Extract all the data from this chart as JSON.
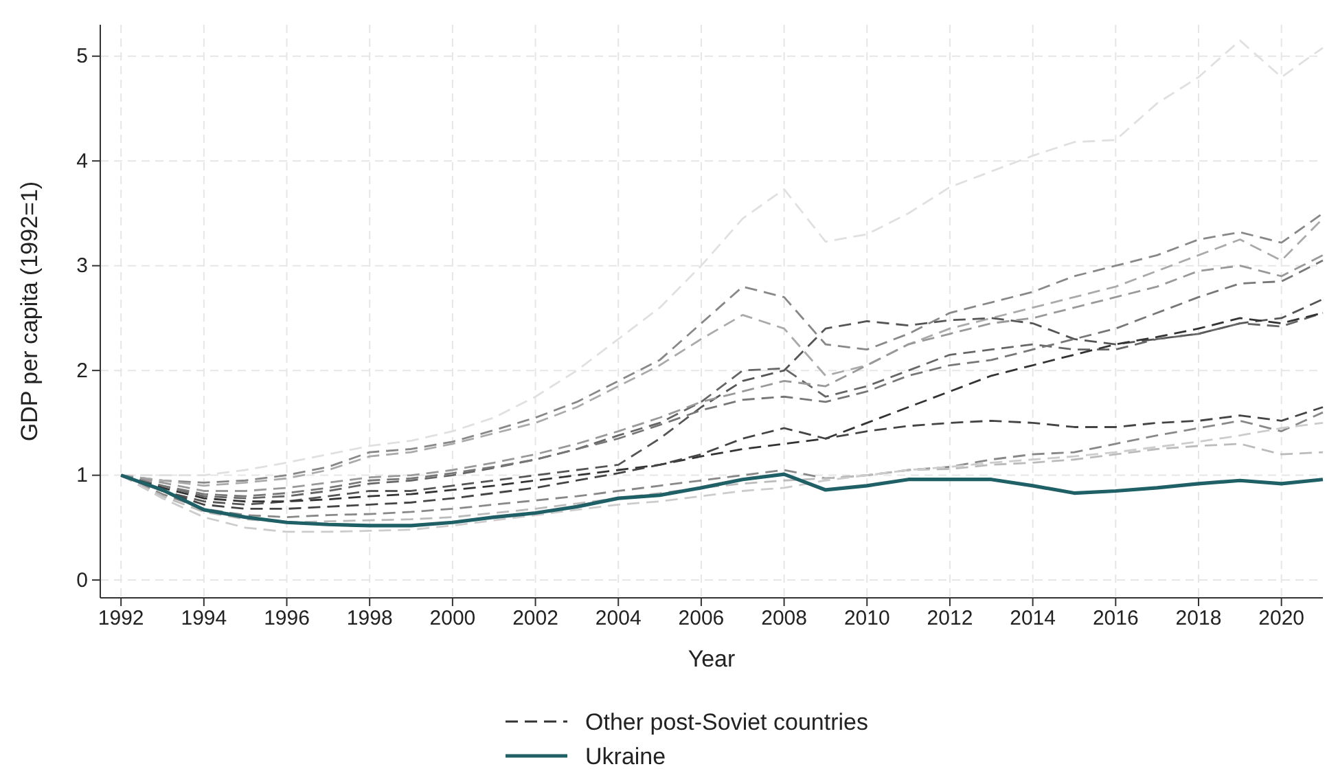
{
  "chart_data": {
    "type": "line",
    "xlabel": "Year",
    "ylabel": "GDP per capita (1992=1)",
    "x": [
      1992,
      1993,
      1994,
      1995,
      1996,
      1997,
      1998,
      1999,
      2000,
      2001,
      2002,
      2003,
      2004,
      2005,
      2006,
      2007,
      2008,
      2009,
      2010,
      2011,
      2012,
      2013,
      2014,
      2015,
      2016,
      2017,
      2018,
      2019,
      2020,
      2021
    ],
    "xlim": [
      1991.5,
      2021
    ],
    "xticks": [
      1992,
      1994,
      1996,
      1998,
      2000,
      2002,
      2004,
      2006,
      2008,
      2010,
      2012,
      2014,
      2016,
      2018,
      2020
    ],
    "ylim": [
      -0.17,
      5.3
    ],
    "yticks": [
      0,
      1,
      2,
      3,
      4,
      5
    ],
    "grid": true,
    "legend": "bottom",
    "marker": "none",
    "series": [
      {
        "color": "#e0e0e0",
        "line_style": "dashed",
        "values": [
          1,
          1,
          1,
          1.05,
          1.12,
          1.2,
          1.28,
          1.33,
          1.42,
          1.55,
          1.75,
          2.0,
          2.3,
          2.6,
          3.0,
          3.45,
          3.73,
          3.23,
          3.3,
          3.5,
          3.75,
          3.9,
          4.05,
          4.18,
          4.2,
          4.55,
          4.8,
          5.15,
          4.8,
          5.08
        ]
      },
      {
        "color": "#888888",
        "line_style": "dashed",
        "values": [
          1,
          0.95,
          0.93,
          0.95,
          1.0,
          1.08,
          1.22,
          1.25,
          1.32,
          1.43,
          1.55,
          1.7,
          1.9,
          2.1,
          2.45,
          2.8,
          2.7,
          2.25,
          2.2,
          2.35,
          2.55,
          2.65,
          2.75,
          2.9,
          3.0,
          3.1,
          3.25,
          3.32,
          3.22,
          3.5
        ]
      },
      {
        "color": "#aaaaaa",
        "line_style": "dashed",
        "values": [
          1,
          0.95,
          0.9,
          0.93,
          0.97,
          1.05,
          1.18,
          1.22,
          1.3,
          1.4,
          1.5,
          1.65,
          1.85,
          2.05,
          2.3,
          2.53,
          2.4,
          1.95,
          2.05,
          2.25,
          2.4,
          2.5,
          2.6,
          2.7,
          2.8,
          2.95,
          3.1,
          3.25,
          3.05,
          3.45
        ]
      },
      {
        "color": "#555555",
        "line_style": "dashed",
        "values": [
          1,
          0.85,
          0.75,
          0.72,
          0.75,
          0.8,
          0.85,
          0.85,
          0.9,
          0.95,
          1.0,
          1.05,
          1.1,
          1.35,
          1.65,
          1.9,
          2.0,
          2.4,
          2.47,
          2.43,
          2.48,
          2.5,
          2.45,
          2.3,
          2.25,
          2.3,
          2.35,
          2.45,
          2.5,
          2.68
        ]
      },
      {
        "color": "#666666",
        "line_style": "dashed",
        "values": [
          1,
          0.9,
          0.8,
          0.78,
          0.8,
          0.85,
          0.92,
          0.95,
          1.0,
          1.07,
          1.15,
          1.25,
          1.38,
          1.5,
          1.7,
          2.0,
          2.02,
          1.75,
          1.85,
          2.0,
          2.15,
          2.2,
          2.25,
          2.2,
          2.2,
          2.3,
          2.35,
          2.45,
          2.42,
          2.55
        ]
      },
      {
        "color": "#999999",
        "line_style": "dashed",
        "values": [
          1,
          0.93,
          0.85,
          0.85,
          0.88,
          0.93,
          0.98,
          1.0,
          1.05,
          1.12,
          1.2,
          1.3,
          1.42,
          1.55,
          1.7,
          1.8,
          1.9,
          1.85,
          2.05,
          2.25,
          2.35,
          2.45,
          2.5,
          2.6,
          2.7,
          2.8,
          2.95,
          3.0,
          2.9,
          3.1
        ]
      },
      {
        "color": "#777777",
        "line_style": "dashed",
        "values": [
          1,
          0.9,
          0.82,
          0.8,
          0.83,
          0.88,
          0.95,
          0.97,
          1.02,
          1.08,
          1.15,
          1.25,
          1.35,
          1.48,
          1.62,
          1.72,
          1.75,
          1.7,
          1.8,
          1.95,
          2.05,
          2.1,
          2.2,
          2.3,
          2.4,
          2.55,
          2.7,
          2.83,
          2.85,
          3.05
        ]
      },
      {
        "color": "#333333",
        "line_style": "dashed",
        "name": "Other post-Soviet countries",
        "values": [
          1,
          0.88,
          0.78,
          0.75,
          0.75,
          0.77,
          0.8,
          0.82,
          0.86,
          0.9,
          0.95,
          1.0,
          1.05,
          1.1,
          1.18,
          1.25,
          1.3,
          1.35,
          1.5,
          1.65,
          1.8,
          1.95,
          2.05,
          2.15,
          2.25,
          2.32,
          2.4,
          2.5,
          2.45,
          2.55
        ]
      },
      {
        "color": "#444444",
        "line_style": "dashed",
        "values": [
          1,
          0.85,
          0.72,
          0.68,
          0.68,
          0.7,
          0.72,
          0.74,
          0.78,
          0.83,
          0.88,
          0.95,
          1.02,
          1.1,
          1.2,
          1.35,
          1.45,
          1.35,
          1.42,
          1.47,
          1.5,
          1.52,
          1.5,
          1.46,
          1.46,
          1.5,
          1.52,
          1.57,
          1.52,
          1.65
        ]
      },
      {
        "color": "#888888",
        "line_style": "dashed",
        "values": [
          1,
          0.82,
          0.68,
          0.62,
          0.6,
          0.62,
          0.63,
          0.65,
          0.68,
          0.72,
          0.76,
          0.8,
          0.85,
          0.9,
          0.95,
          1.0,
          1.05,
          0.97,
          1.0,
          1.05,
          1.08,
          1.15,
          1.2,
          1.22,
          1.3,
          1.38,
          1.45,
          1.52,
          1.42,
          1.6
        ]
      },
      {
        "color": "#bbbbbb",
        "line_style": "dashed",
        "values": [
          1,
          0.8,
          0.65,
          0.58,
          0.55,
          0.56,
          0.57,
          0.58,
          0.6,
          0.64,
          0.68,
          0.73,
          0.78,
          0.83,
          0.88,
          0.92,
          0.95,
          0.97,
          1.0,
          1.05,
          1.06,
          1.1,
          1.12,
          1.15,
          1.2,
          1.25,
          1.28,
          1.3,
          1.2,
          1.22
        ]
      },
      {
        "color": "#cccccc",
        "line_style": "dashed",
        "values": [
          1,
          0.78,
          0.6,
          0.5,
          0.46,
          0.46,
          0.47,
          0.48,
          0.52,
          0.57,
          0.62,
          0.67,
          0.72,
          0.75,
          0.8,
          0.85,
          0.88,
          0.95,
          1.0,
          1.05,
          1.08,
          1.12,
          1.15,
          1.18,
          1.22,
          1.27,
          1.32,
          1.38,
          1.45,
          1.5
        ]
      },
      {
        "color": "#1f5f66",
        "line_style": "solid",
        "name": "Ukraine",
        "values": [
          1,
          0.86,
          0.67,
          0.6,
          0.55,
          0.53,
          0.52,
          0.52,
          0.55,
          0.6,
          0.64,
          0.7,
          0.78,
          0.81,
          0.88,
          0.96,
          1.01,
          0.86,
          0.9,
          0.96,
          0.96,
          0.96,
          0.9,
          0.83,
          0.85,
          0.88,
          0.92,
          0.95,
          0.92,
          0.96
        ]
      }
    ]
  }
}
